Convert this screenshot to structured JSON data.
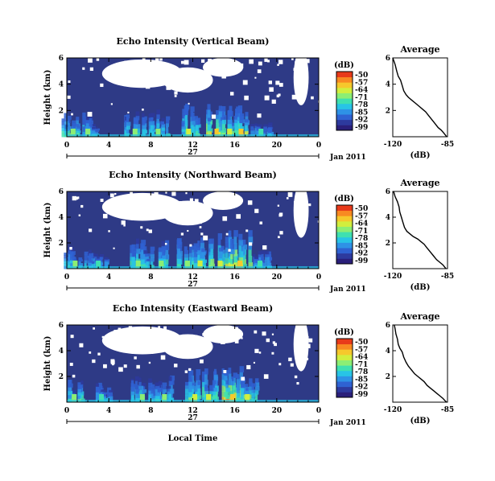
{
  "colors": {
    "background_echo": "#2e3a86",
    "noise_mask": "#ffffff",
    "colormap": [
      "#2a1f7a",
      "#2d3a9e",
      "#2f62d2",
      "#2e92e6",
      "#28c4e6",
      "#3fe0b0",
      "#8cee74",
      "#d2ee3e",
      "#f6c82c",
      "#f88a22",
      "#e83a1a"
    ]
  },
  "chart_data": [
    {
      "type": "heatmap",
      "panel": "vertical",
      "title": "Echo Intensity (Vertical Beam)",
      "ylabel": "Height (km)",
      "xlabel": "",
      "x_ticks": [
        "0",
        "4",
        "8",
        "12",
        "16",
        "20",
        "0"
      ],
      "y_ticks": [
        "6",
        "4",
        "2"
      ],
      "day_label": "27",
      "date_label": "Jan 2011",
      "xlim": [
        0,
        24
      ],
      "ylim": [
        0,
        6
      ],
      "colorbar": {
        "label": "(dB)",
        "ticks": [
          "-50",
          "-57",
          "-64",
          "-71",
          "-78",
          "-85",
          "-92",
          "-99"
        ]
      },
      "echo_bursts": [
        {
          "t": 0.6,
          "strength": 0.65,
          "top": 1.9
        },
        {
          "t": 2.0,
          "strength": 0.5,
          "top": 1.6
        },
        {
          "t": 6.5,
          "strength": 0.55,
          "top": 2.0
        },
        {
          "t": 8.7,
          "strength": 0.55,
          "top": 2.1
        },
        {
          "t": 11.6,
          "strength": 0.7,
          "top": 2.6
        },
        {
          "t": 14.3,
          "strength": 1.0,
          "top": 2.8
        },
        {
          "t": 15.5,
          "strength": 0.75,
          "top": 2.4
        },
        {
          "t": 16.6,
          "strength": 0.9,
          "top": 2.5
        },
        {
          "t": 18.5,
          "strength": 0.4,
          "top": 1.2
        }
      ]
    },
    {
      "type": "line",
      "panel": "vertical-average",
      "title": "Average",
      "xlabel": "(dB)",
      "x_ticks": [
        "-120",
        "-85"
      ],
      "y_ticks": [
        "6",
        "4",
        "2"
      ],
      "xlim": [
        -120,
        -85
      ],
      "ylim": [
        0,
        6
      ],
      "series": [
        {
          "x": [
            -120,
            -118.5,
            -117.5,
            -116.5,
            -115,
            -114,
            -113,
            -111.5,
            -110,
            -108,
            -106,
            -103,
            -101,
            -99,
            -97,
            -95,
            -93,
            -91,
            -89,
            -87.5,
            -86.5,
            -85.5
          ],
          "y": [
            6,
            5.5,
            5.0,
            4.6,
            4.3,
            3.9,
            3.5,
            3.2,
            3.0,
            2.8,
            2.6,
            2.3,
            2.1,
            1.9,
            1.6,
            1.3,
            1.0,
            0.7,
            0.5,
            0.3,
            0.15,
            0
          ]
        }
      ]
    },
    {
      "type": "heatmap",
      "panel": "northward",
      "title": "Echo Intensity (Northward Beam)",
      "ylabel": "Height (km)",
      "xlabel": "",
      "x_ticks": [
        "0",
        "4",
        "8",
        "12",
        "16",
        "20",
        "0"
      ],
      "y_ticks": [
        "6",
        "4",
        "2"
      ],
      "day_label": "27",
      "date_label": "Jan 2011",
      "xlim": [
        0,
        24
      ],
      "ylim": [
        0,
        6
      ],
      "colorbar": {
        "label": "(dB)",
        "ticks": [
          "-50",
          "-57",
          "-64",
          "-71",
          "-78",
          "-85",
          "-92",
          "-99"
        ]
      },
      "echo_bursts": [
        {
          "t": 0.8,
          "strength": 0.55,
          "top": 1.8
        },
        {
          "t": 3.0,
          "strength": 0.45,
          "top": 1.5
        },
        {
          "t": 6.8,
          "strength": 0.6,
          "top": 2.4
        },
        {
          "t": 9.0,
          "strength": 0.6,
          "top": 2.3
        },
        {
          "t": 11.5,
          "strength": 0.65,
          "top": 2.5
        },
        {
          "t": 12.7,
          "strength": 0.7,
          "top": 2.6
        },
        {
          "t": 14.6,
          "strength": 0.85,
          "top": 3.0
        },
        {
          "t": 16.5,
          "strength": 0.95,
          "top": 3.0
        },
        {
          "t": 18.4,
          "strength": 0.45,
          "top": 1.4
        }
      ]
    },
    {
      "type": "line",
      "panel": "northward-average",
      "title": "Average",
      "xlabel": "(dB)",
      "x_ticks": [
        "-120",
        "-85"
      ],
      "y_ticks": [
        "6",
        "4",
        "2"
      ],
      "xlim": [
        -120,
        -85
      ],
      "ylim": [
        0,
        6
      ],
      "series": [
        {
          "x": [
            -119.5,
            -118.5,
            -117,
            -116,
            -115.5,
            -114.5,
            -113.5,
            -112.5,
            -111,
            -109,
            -107,
            -104,
            -102,
            -100,
            -98,
            -96,
            -94,
            -92,
            -90,
            -88,
            -87,
            -86
          ],
          "y": [
            6,
            5.6,
            5.2,
            4.8,
            4.4,
            4.0,
            3.6,
            3.2,
            2.9,
            2.7,
            2.5,
            2.3,
            2.1,
            1.9,
            1.6,
            1.3,
            1.0,
            0.7,
            0.5,
            0.3,
            0.15,
            0
          ]
        }
      ]
    },
    {
      "type": "heatmap",
      "panel": "eastward",
      "title": "Echo Intensity (Eastward Beam)",
      "ylabel": "Height (km)",
      "xlabel": "Local Time",
      "x_ticks": [
        "0",
        "4",
        "8",
        "12",
        "16",
        "20",
        "0"
      ],
      "y_ticks": [
        "6",
        "4",
        "2"
      ],
      "day_label": "27",
      "date_label": "Jan 2011",
      "xlim": [
        0,
        24
      ],
      "ylim": [
        0,
        6
      ],
      "colorbar": {
        "label": "(dB)",
        "ticks": [
          "-50",
          "-57",
          "-64",
          "-71",
          "-78",
          "-85",
          "-92",
          "-99"
        ]
      },
      "echo_bursts": [
        {
          "t": 0.7,
          "strength": 0.6,
          "top": 1.8
        },
        {
          "t": 3.3,
          "strength": 0.45,
          "top": 1.6
        },
        {
          "t": 7.2,
          "strength": 0.55,
          "top": 2.2
        },
        {
          "t": 9.3,
          "strength": 0.55,
          "top": 2.2
        },
        {
          "t": 12.2,
          "strength": 0.7,
          "top": 2.7
        },
        {
          "t": 13.5,
          "strength": 0.75,
          "top": 2.8
        },
        {
          "t": 15.8,
          "strength": 1.0,
          "top": 3.0
        },
        {
          "t": 17.2,
          "strength": 0.75,
          "top": 2.4
        }
      ]
    },
    {
      "type": "line",
      "panel": "eastward-average",
      "title": "Average",
      "xlabel": "(dB)",
      "x_ticks": [
        "-120",
        "-85"
      ],
      "y_ticks": [
        "6",
        "4",
        "2"
      ],
      "xlim": [
        -120,
        -85
      ],
      "ylim": [
        0,
        6
      ],
      "series": [
        {
          "x": [
            -119,
            -118.5,
            -118,
            -117,
            -116.5,
            -115.5,
            -114,
            -113,
            -111.5,
            -110,
            -108,
            -106,
            -104,
            -102,
            -100,
            -98,
            -96,
            -94,
            -92,
            -90,
            -88,
            -86.5,
            -85.5
          ],
          "y": [
            6,
            5.7,
            5.3,
            4.9,
            4.5,
            4.2,
            3.9,
            3.5,
            3.1,
            2.8,
            2.5,
            2.2,
            2.0,
            1.8,
            1.6,
            1.3,
            1.1,
            0.9,
            0.7,
            0.5,
            0.3,
            0.1,
            0
          ]
        }
      ]
    }
  ]
}
